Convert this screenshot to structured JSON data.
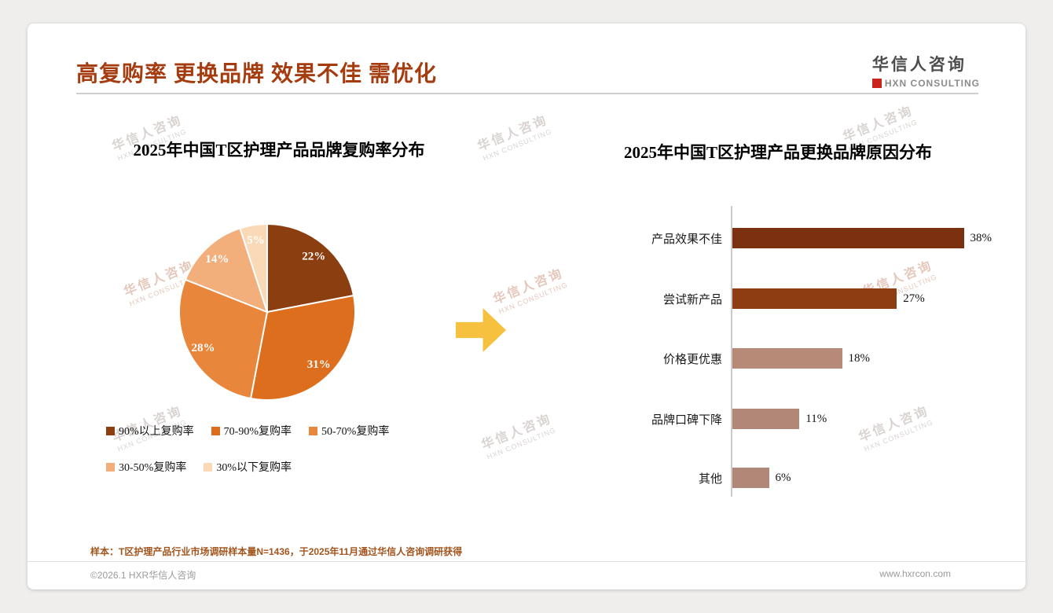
{
  "page": {
    "title": "高复购率 更换品牌 效果不佳 需优化",
    "sample_note": "样本：T区护理产品行业市场调研样本量N=1436，于2025年11月通过华信人咨询调研获得",
    "copyright": "©2026.1 HXR华信人咨询",
    "website": "www.hxrcon.com"
  },
  "logo": {
    "name": "华信人咨询",
    "sub": "HXN CONSULTING"
  },
  "watermark": {
    "line1": "华信人咨询",
    "line2": "HXN CONSULTING"
  },
  "arrow_color": "#F7C140",
  "chart_data": [
    {
      "type": "pie",
      "title": "2025年中国T区护理产品品牌复购率分布",
      "labels": [
        "90%以上复购率",
        "70-90%复购率",
        "50-70%复购率",
        "30-50%复购率",
        "30%以下复购率"
      ],
      "values": [
        22,
        31,
        28,
        14,
        5
      ],
      "value_labels": [
        "22%",
        "31%",
        "28%",
        "14%",
        "5%"
      ],
      "colors": [
        "#8B3E0F",
        "#DC6E1E",
        "#E8863B",
        "#F2AE7B",
        "#F9D9B6"
      ],
      "start_angle": "top-clockwise",
      "legend_position": "bottom"
    },
    {
      "type": "bar",
      "orientation": "horizontal",
      "title": "2025年中国T区护理产品更换品牌原因分布",
      "categories": [
        "产品效果不佳",
        "尝试新产品",
        "价格更优惠",
        "品牌口碑下降",
        "其他"
      ],
      "values": [
        38,
        27,
        18,
        11,
        6
      ],
      "value_labels": [
        "38%",
        "27%",
        "18%",
        "11%",
        "6%"
      ],
      "colors": [
        "#7B3110",
        "#8E3D12",
        "#B68A77",
        "#B18877",
        "#B18877"
      ],
      "xlim": [
        0,
        40
      ],
      "grid": false
    }
  ]
}
